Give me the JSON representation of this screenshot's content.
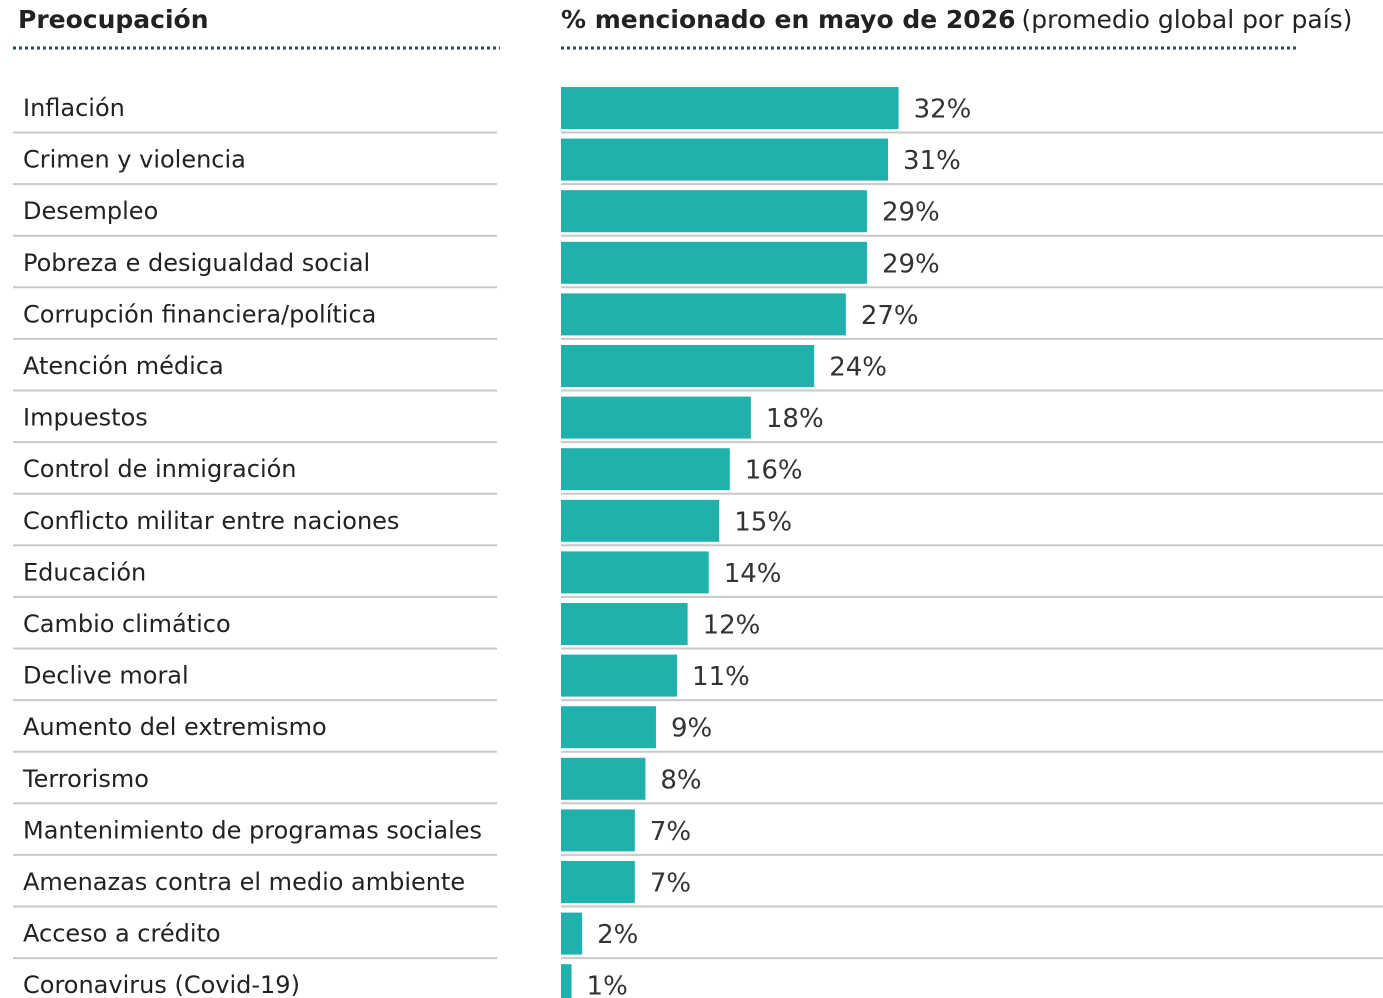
{
  "chart_data": {
    "type": "bar",
    "orientation": "horizontal",
    "label_header": "Preocupación",
    "title": "% mencionado en mayo de 2026",
    "subtitle": "(promedio global por país)",
    "color": "#20b1ad",
    "categories": [
      "Inflación",
      "Crimen y violencia",
      "Desempleo",
      "Pobreza e desigualdad social",
      "Corrupción financiera/política",
      "Atención médica",
      "Impuestos",
      "Control de inmigración",
      "Conflicto militar entre naciones",
      "Educación",
      "Cambio climático",
      "Declive moral",
      "Aumento del extremismo",
      "Terrorismo",
      "Mantenimiento de programas sociales",
      "Amenazas contra el medio ambiente",
      "Acceso a crédito",
      "Coronavirus (Covid-19)"
    ],
    "values": [
      32,
      31,
      29,
      29,
      27,
      24,
      18,
      16,
      15,
      14,
      12,
      11,
      9,
      8,
      7,
      7,
      2,
      1
    ],
    "value_labels": [
      "32%",
      "31%",
      "29%",
      "29%",
      "27%",
      "24%",
      "18%",
      "16%",
      "15%",
      "14%",
      "12%",
      "11%",
      "9%",
      "8%",
      "7%",
      "7%",
      "2%",
      "1%"
    ]
  }
}
